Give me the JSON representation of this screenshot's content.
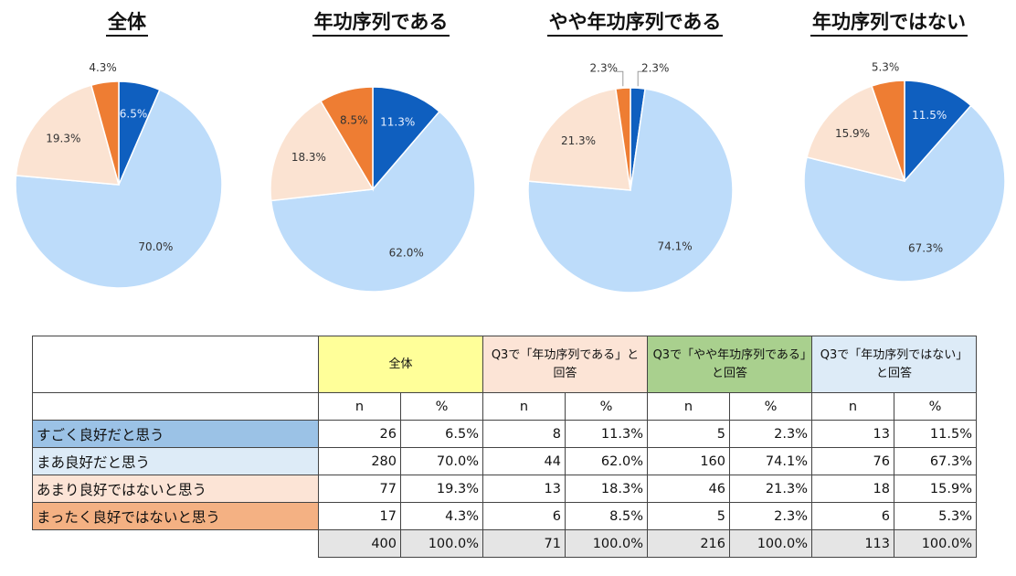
{
  "colors": [
    "#0f5fbf",
    "#bddcfa",
    "#fbe3d2",
    "#ee7d33"
  ],
  "chart_data": [
    {
      "type": "pie",
      "title": "全体",
      "categories": [
        "すごく良好だと思う",
        "まあ良好だと思う",
        "あまり良好ではないと思う",
        "まったく良好ではないと思う"
      ],
      "values": [
        6.5,
        70.0,
        19.3,
        4.3
      ],
      "labels": [
        "6.5%",
        "70.0%",
        "19.3%",
        "4.3%"
      ]
    },
    {
      "type": "pie",
      "title": "年功序列である",
      "categories": [
        "すごく良好だと思う",
        "まあ良好だと思う",
        "あまり良好ではないと思う",
        "まったく良好ではないと思う"
      ],
      "values": [
        11.3,
        62.0,
        18.3,
        8.5
      ],
      "labels": [
        "11.3%",
        "62.0%",
        "18.3%",
        "8.5%"
      ]
    },
    {
      "type": "pie",
      "title": "やや年功序列である",
      "categories": [
        "すごく良好だと思う",
        "まあ良好だと思う",
        "あまり良好ではないと思う",
        "まったく良好ではないと思う"
      ],
      "values": [
        2.3,
        74.1,
        21.3,
        2.3
      ],
      "labels": [
        "2.3%",
        "74.1%",
        "21.3%",
        "2.3%"
      ]
    },
    {
      "type": "pie",
      "title": "年功序列ではない",
      "categories": [
        "すごく良好だと思う",
        "まあ良好だと思う",
        "あまり良好ではないと思う",
        "まったく良好ではないと思う"
      ],
      "values": [
        11.5,
        67.3,
        15.9,
        5.3
      ],
      "labels": [
        "11.5%",
        "67.3%",
        "15.9%",
        "5.3%"
      ]
    }
  ],
  "table": {
    "groups": [
      "全体",
      "Q3で「年功序列である」と回答",
      "Q3で「やや年功序列である」と回答",
      "Q3で「年功序列ではない」と回答"
    ],
    "subheaders": [
      "n",
      "%"
    ],
    "rows": [
      {
        "label": "すごく良好だと思う",
        "cells": [
          "26",
          "6.5%",
          "8",
          "11.3%",
          "5",
          "2.3%",
          "13",
          "11.5%"
        ]
      },
      {
        "label": "まあ良好だと思う",
        "cells": [
          "280",
          "70.0%",
          "44",
          "62.0%",
          "160",
          "74.1%",
          "76",
          "67.3%"
        ]
      },
      {
        "label": "あまり良好ではないと思う",
        "cells": [
          "77",
          "19.3%",
          "13",
          "18.3%",
          "46",
          "21.3%",
          "18",
          "15.9%"
        ]
      },
      {
        "label": "まったく良好ではないと思う",
        "cells": [
          "17",
          "4.3%",
          "6",
          "8.5%",
          "5",
          "2.3%",
          "6",
          "5.3%"
        ]
      }
    ],
    "total": [
      "400",
      "100.0%",
      "71",
      "100.0%",
      "216",
      "100.0%",
      "113",
      "100.0%"
    ]
  }
}
